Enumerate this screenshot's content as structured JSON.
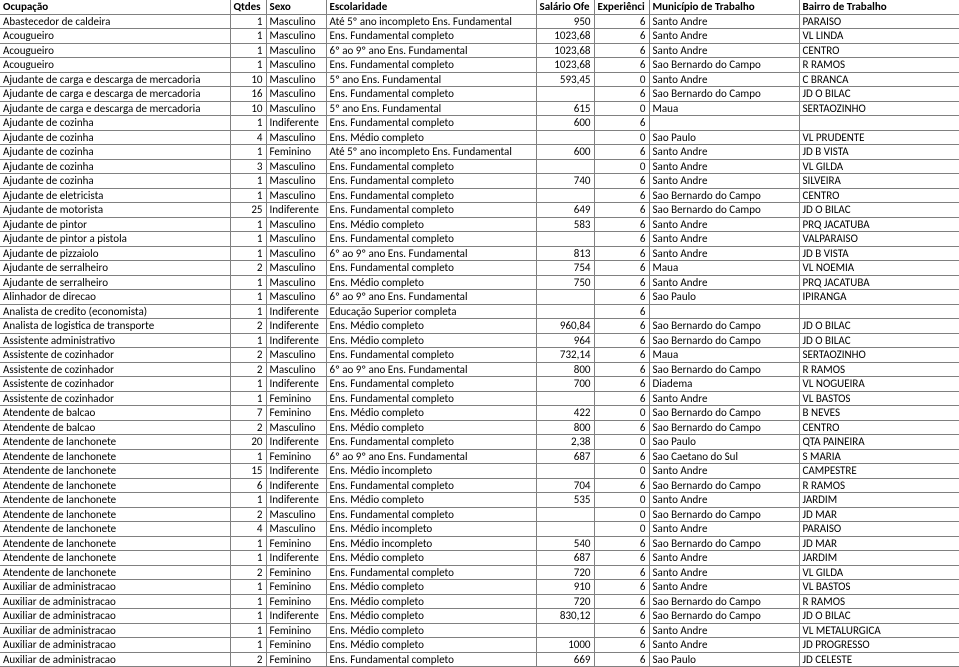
{
  "columns": [
    "Ocupação",
    "Qtdes",
    "Sexo",
    "Escolaridade",
    "Salário Ofe",
    "Experiênci",
    "Município de Trabalho",
    "Bairro de Trabalho"
  ],
  "rows": [
    [
      "Abastecedor de caldeira",
      "1",
      "Masculino",
      "Até 5º ano incompleto Ens. Fundamental",
      "950",
      "6",
      "Santo Andre",
      "PARAISO"
    ],
    [
      "Acougueiro",
      "1",
      "Masculino",
      "Ens. Fundamental completo",
      "1023,68",
      "6",
      "Santo Andre",
      "VL LINDA"
    ],
    [
      "Acougueiro",
      "1",
      "Masculino",
      "6º ao 9º ano Ens. Fundamental",
      "1023,68",
      "6",
      "Santo Andre",
      "CENTRO"
    ],
    [
      "Acougueiro",
      "1",
      "Masculino",
      "Ens. Fundamental completo",
      "1023,68",
      "6",
      "Sao Bernardo do Campo",
      "R RAMOS"
    ],
    [
      "Ajudante de carga e descarga de mercadoria",
      "10",
      "Masculino",
      "5º ano Ens. Fundamental",
      "593,45",
      "0",
      "Santo Andre",
      "C BRANCA"
    ],
    [
      "Ajudante de carga e descarga de mercadoria",
      "16",
      "Masculino",
      "Ens. Fundamental completo",
      "",
      "6",
      "Sao Bernardo do Campo",
      "JD O BILAC"
    ],
    [
      "Ajudante de carga e descarga de mercadoria",
      "10",
      "Masculino",
      "5º ano Ens. Fundamental",
      "615",
      "0",
      "Maua",
      "SERTAOZINHO"
    ],
    [
      "Ajudante de cozinha",
      "1",
      "Indiferente",
      "Ens. Fundamental completo",
      "600",
      "6",
      "",
      ""
    ],
    [
      "Ajudante de cozinha",
      "4",
      "Masculino",
      "Ens. Médio completo",
      "",
      "0",
      "Sao Paulo",
      "VL PRUDENTE"
    ],
    [
      "Ajudante de cozinha",
      "1",
      "Feminino",
      "Até 5º ano incompleto Ens. Fundamental",
      "600",
      "6",
      "Santo Andre",
      "JD B VISTA"
    ],
    [
      "Ajudante de cozinha",
      "3",
      "Masculino",
      "Ens. Fundamental completo",
      "",
      "0",
      "Santo Andre",
      "VL GILDA"
    ],
    [
      "Ajudante de cozinha",
      "1",
      "Masculino",
      "Ens. Fundamental completo",
      "740",
      "6",
      "Santo Andre",
      "SILVEIRA"
    ],
    [
      "Ajudante de eletricista",
      "1",
      "Masculino",
      "Ens. Fundamental completo",
      "",
      "6",
      "Sao Bernardo do Campo",
      "CENTRO"
    ],
    [
      "Ajudante de motorista",
      "25",
      "Indiferente",
      "Ens. Fundamental completo",
      "649",
      "6",
      "Sao Bernardo do Campo",
      "JD O BILAC"
    ],
    [
      "Ajudante de pintor",
      "1",
      "Masculino",
      "Ens. Médio completo",
      "583",
      "6",
      "Santo Andre",
      "PRQ JACATUBA"
    ],
    [
      "Ajudante de pintor a pistola",
      "1",
      "Masculino",
      "Ens. Fundamental completo",
      "",
      "6",
      "Santo Andre",
      "VALPARAISO"
    ],
    [
      "Ajudante de pizzaiolo",
      "1",
      "Masculino",
      "6º ao 9º ano Ens. Fundamental",
      "813",
      "6",
      "Santo Andre",
      "JD B VISTA"
    ],
    [
      "Ajudante de serralheiro",
      "2",
      "Masculino",
      "Ens. Fundamental completo",
      "754",
      "6",
      "Maua",
      "VL NOEMIA"
    ],
    [
      "Ajudante de serralheiro",
      "1",
      "Masculino",
      "Ens. Médio completo",
      "750",
      "6",
      "Santo Andre",
      "PRQ JACATUBA"
    ],
    [
      "Alinhador de direcao",
      "1",
      "Masculino",
      "6º ao 9º ano Ens. Fundamental",
      "",
      "6",
      "Sao Paulo",
      "IPIRANGA"
    ],
    [
      "Analista de credito (economista)",
      "1",
      "Indiferente",
      "Educação Superior completa",
      "",
      "6",
      "",
      ""
    ],
    [
      "Analista de logistica de transporte",
      "2",
      "Indiferente",
      "Ens. Médio completo",
      "960,84",
      "6",
      "Sao Bernardo do Campo",
      "JD O BILAC"
    ],
    [
      "Assistente administrativo",
      "1",
      "Indiferente",
      "Ens. Médio completo",
      "964",
      "6",
      "Sao Bernardo do Campo",
      "JD O BILAC"
    ],
    [
      "Assistente de cozinhador",
      "2",
      "Masculino",
      "Ens. Fundamental completo",
      "732,14",
      "6",
      "Maua",
      "SERTAOZINHO"
    ],
    [
      "Assistente de cozinhador",
      "2",
      "Masculino",
      "6º ao 9º ano Ens. Fundamental",
      "800",
      "6",
      "Sao Bernardo do Campo",
      "R RAMOS"
    ],
    [
      "Assistente de cozinhador",
      "1",
      "Indiferente",
      "Ens. Fundamental completo",
      "700",
      "6",
      "Diadema",
      "VL NOGUEIRA"
    ],
    [
      "Assistente de cozinhador",
      "1",
      "Feminino",
      "Ens. Fundamental completo",
      "",
      "6",
      "Santo Andre",
      "VL BASTOS"
    ],
    [
      "Atendente de balcao",
      "7",
      "Feminino",
      "Ens. Médio completo",
      "422",
      "0",
      "Sao Bernardo do Campo",
      "B NEVES"
    ],
    [
      "Atendente de balcao",
      "2",
      "Masculino",
      "Ens. Médio completo",
      "800",
      "6",
      "Sao Bernardo do Campo",
      "CENTRO"
    ],
    [
      "Atendente de lanchonete",
      "20",
      "Indiferente",
      "Ens. Fundamental completo",
      "2,38",
      "0",
      "Sao Paulo",
      "QTA PAINEIRA"
    ],
    [
      "Atendente de lanchonete",
      "1",
      "Feminino",
      "6º ao 9º ano Ens. Fundamental",
      "687",
      "6",
      "Sao Caetano do Sul",
      "S MARIA"
    ],
    [
      "Atendente de lanchonete",
      "15",
      "Indiferente",
      "Ens. Médio incompleto",
      "",
      "0",
      "Santo Andre",
      "CAMPESTRE"
    ],
    [
      "Atendente de lanchonete",
      "6",
      "Indiferente",
      "Ens. Fundamental completo",
      "704",
      "6",
      "Sao Bernardo do Campo",
      "R RAMOS"
    ],
    [
      "Atendente de lanchonete",
      "1",
      "Indiferente",
      "Ens. Médio completo",
      "535",
      "0",
      "Santo Andre",
      "JARDIM"
    ],
    [
      "Atendente de lanchonete",
      "2",
      "Masculino",
      "Ens. Fundamental completo",
      "",
      "0",
      "Sao Bernardo do Campo",
      "JD MAR"
    ],
    [
      "Atendente de lanchonete",
      "4",
      "Masculino",
      "Ens. Médio incompleto",
      "",
      "0",
      "Santo Andre",
      "PARAISO"
    ],
    [
      "Atendente de lanchonete",
      "1",
      "Feminino",
      "Ens. Médio incompleto",
      "540",
      "6",
      "Sao Bernardo do Campo",
      "JD MAR"
    ],
    [
      "Atendente de lanchonete",
      "1",
      "Indiferente",
      "Ens. Médio completo",
      "687",
      "6",
      "Santo Andre",
      "JARDIM"
    ],
    [
      "Atendente de lanchonete",
      "2",
      "Feminino",
      "Ens. Fundamental completo",
      "720",
      "6",
      "Santo Andre",
      "VL GILDA"
    ],
    [
      "Auxiliar de administracao",
      "1",
      "Feminino",
      "Ens. Médio completo",
      "910",
      "6",
      "Santo Andre",
      "VL BASTOS"
    ],
    [
      "Auxiliar de administracao",
      "1",
      "Feminino",
      "Ens. Médio completo",
      "720",
      "6",
      "Sao Bernardo do Campo",
      "R RAMOS"
    ],
    [
      "Auxiliar de administracao",
      "1",
      "Indiferente",
      "Ens. Médio completo",
      "830,12",
      "6",
      "Sao Bernardo do Campo",
      "JD O BILAC"
    ],
    [
      "Auxiliar de administracao",
      "1",
      "Feminino",
      "Ens. Médio completo",
      "",
      "6",
      "Santo Andre",
      "VL METALURGICA"
    ],
    [
      "Auxiliar de administracao",
      "1",
      "Feminino",
      "Ens. Médio completo",
      "1000",
      "6",
      "Santo Andre",
      "JD PROGRESSO"
    ],
    [
      "Auxiliar de administracao",
      "2",
      "Feminino",
      "Ens. Fundamental completo",
      "669",
      "6",
      "Sao Paulo",
      "JD CELESTE"
    ]
  ]
}
